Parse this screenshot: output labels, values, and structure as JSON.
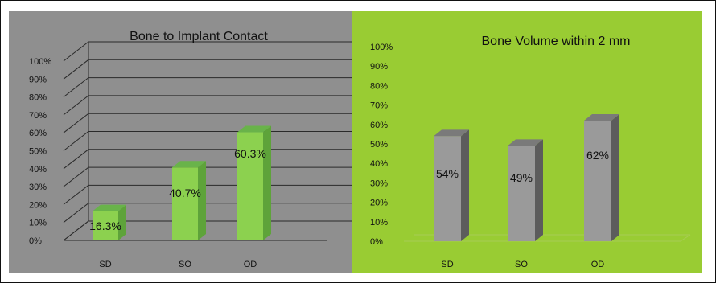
{
  "colors": {
    "left_panel_bg": "#8f8f8f",
    "right_panel_bg": "#99cc33",
    "left_bar_front": "#8cd14f",
    "left_bar_side": "#5ea33a",
    "left_bar_top": "#69b34a",
    "right_bar_front": "#9a9a9a",
    "right_bar_side": "#5c5c5c",
    "right_bar_top": "#7a7a7a",
    "grid_left": "#2a2a2a",
    "grid_right": "#a8cc55"
  },
  "chart_data": [
    {
      "type": "bar",
      "title": "Bone to Implant Contact",
      "categories": [
        "SD",
        "SO",
        "OD"
      ],
      "values": [
        16.3,
        40.7,
        60.3
      ],
      "data_labels": [
        "16.3%",
        "40.7%",
        "60.3%"
      ],
      "yticks": [
        "0%",
        "10%",
        "20%",
        "30%",
        "40%",
        "50%",
        "60%",
        "70%",
        "80%",
        "90%",
        "100%"
      ],
      "ylim": [
        0,
        100
      ],
      "grid": true,
      "legend": "none",
      "style": "3d"
    },
    {
      "type": "bar",
      "title": "Bone Volume within 2 mm",
      "categories": [
        "SD",
        "SO",
        "OD"
      ],
      "values": [
        54,
        49,
        62
      ],
      "data_labels": [
        "54%",
        "49%",
        "62%"
      ],
      "yticks": [
        "0%",
        "10%",
        "20%",
        "30%",
        "40%",
        "50%",
        "60%",
        "70%",
        "80%",
        "90%",
        "100%"
      ],
      "ylim": [
        0,
        100
      ],
      "grid": false,
      "legend": "none",
      "style": "3d"
    }
  ]
}
